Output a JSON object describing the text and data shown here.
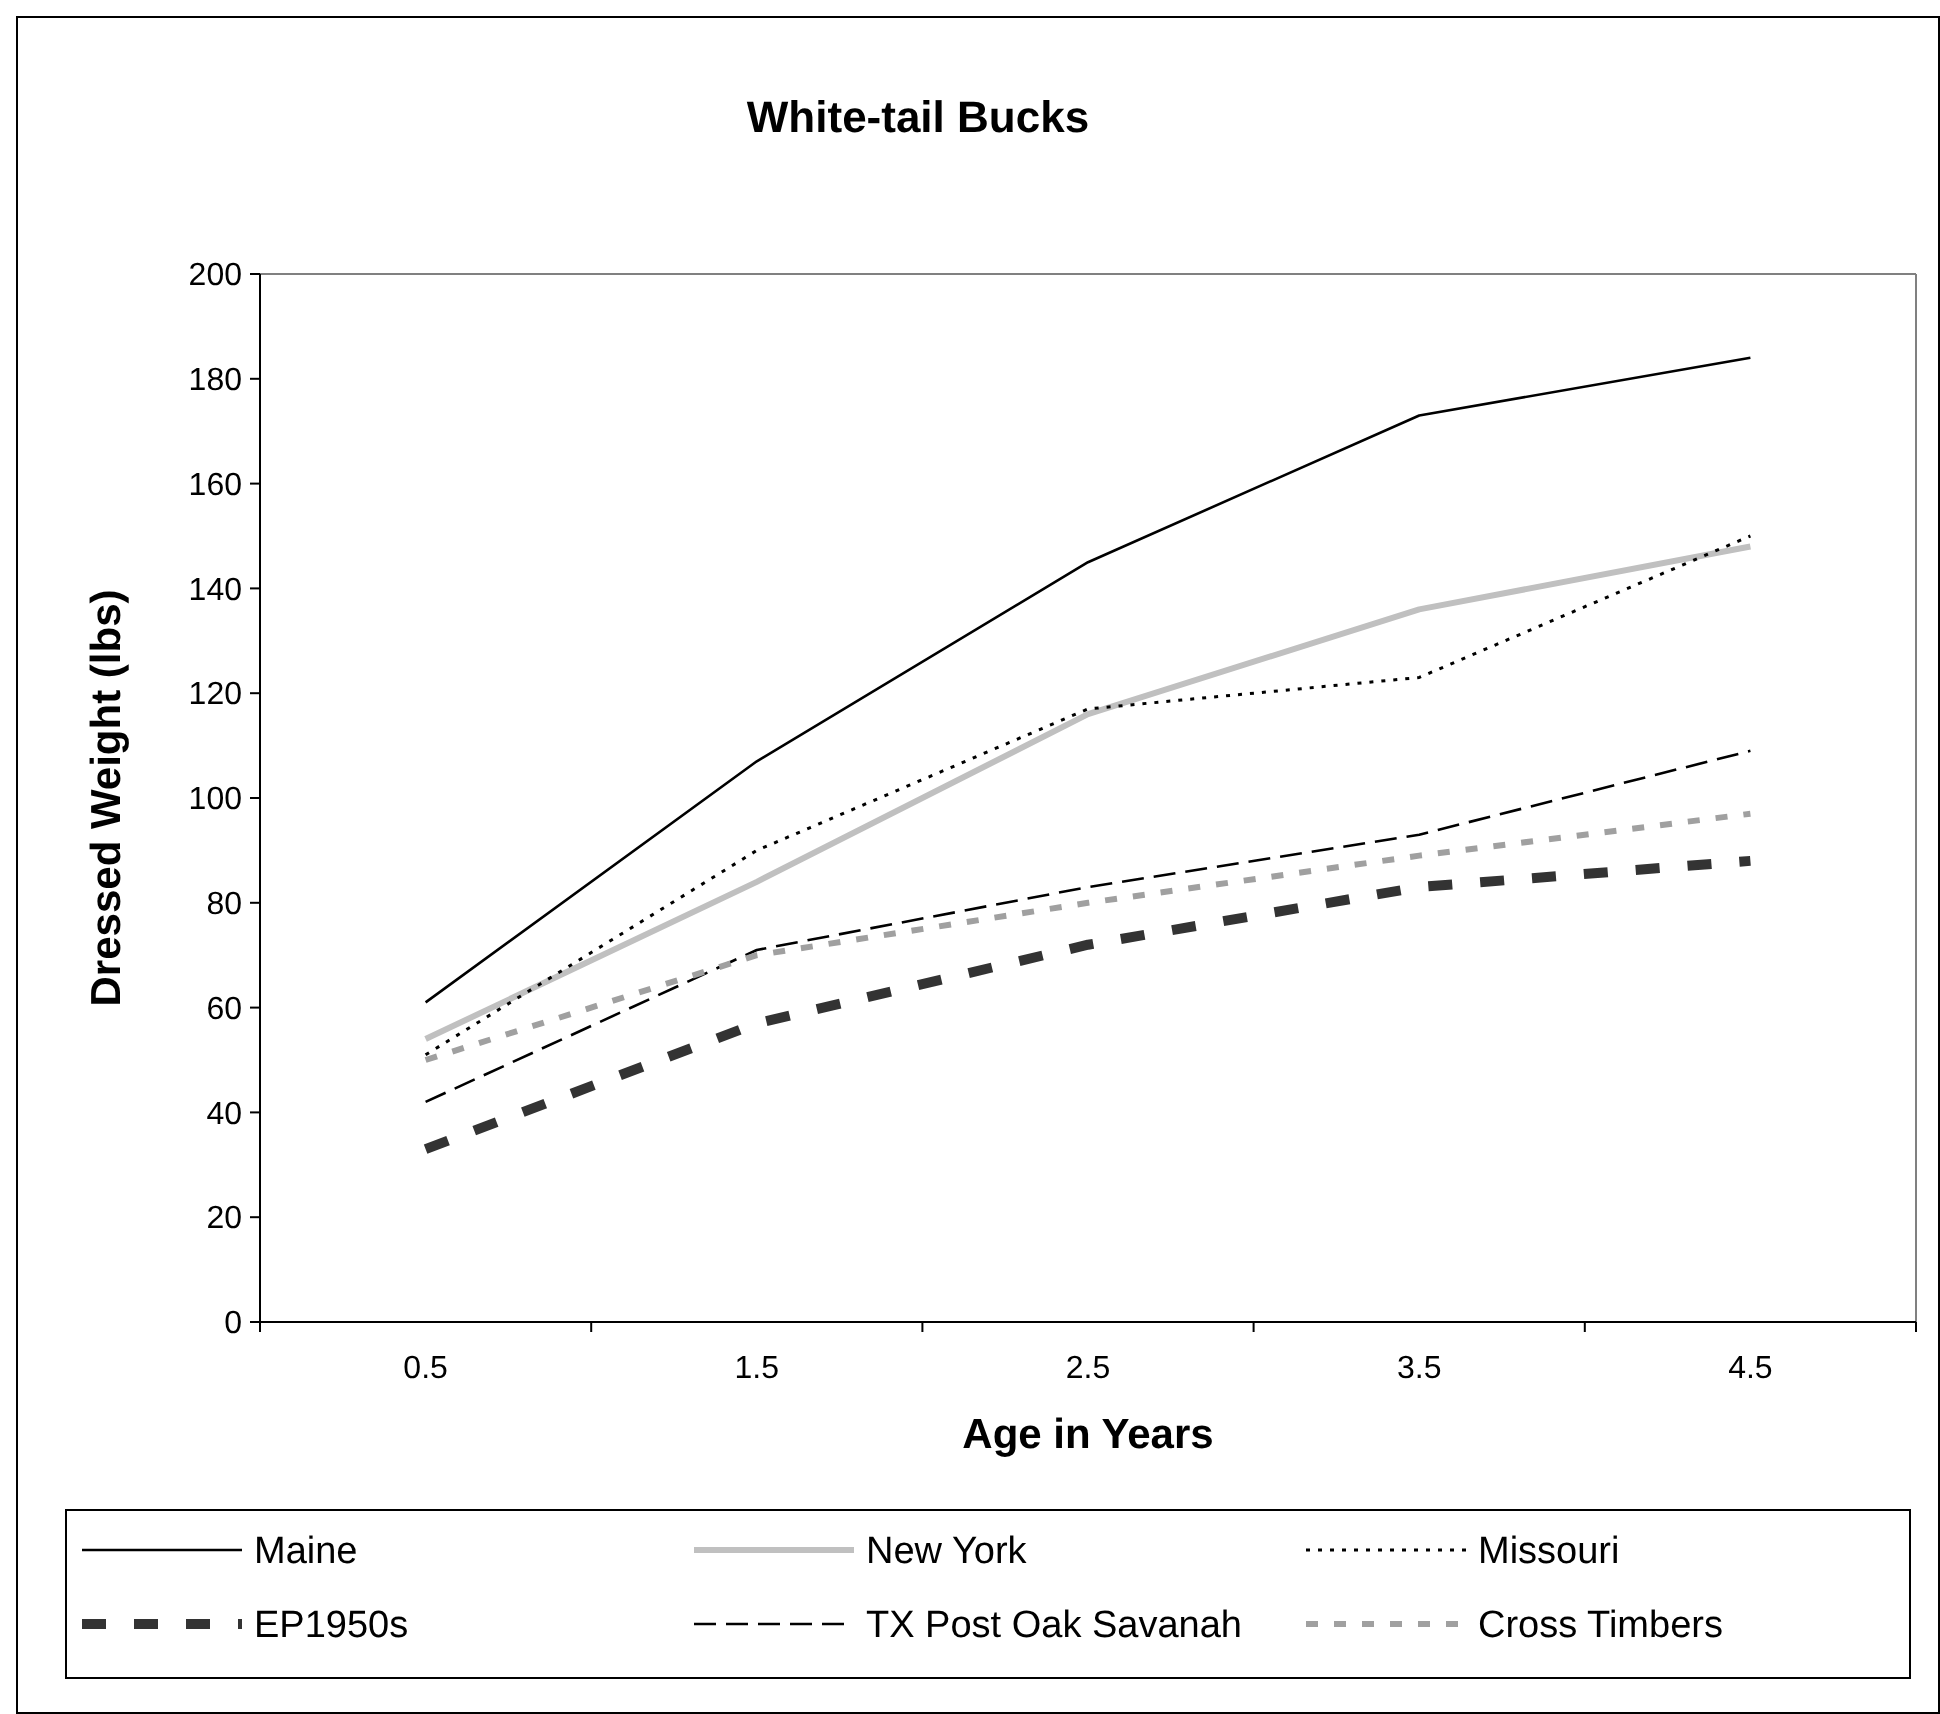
{
  "chart_data": {
    "type": "line",
    "title": "White-tail Bucks",
    "xlabel": "Age in Years",
    "ylabel": "Dressed Weight (lbs)",
    "categories": [
      "0.5",
      "1.5",
      "2.5",
      "3.5",
      "4.5"
    ],
    "ylim": [
      0,
      200
    ],
    "yticks": [
      0,
      20,
      40,
      60,
      80,
      100,
      120,
      140,
      160,
      180,
      200
    ],
    "grid": false,
    "legend": "bottom",
    "series": [
      {
        "name": "Maine",
        "color": "#000000",
        "line_style": "solid",
        "values": [
          61,
          107,
          145,
          173,
          184
        ]
      },
      {
        "name": "New York",
        "color": "#c0c0c0",
        "line_style": "solid",
        "values": [
          54,
          84,
          116,
          136,
          148
        ]
      },
      {
        "name": "Missouri",
        "color": "#000000",
        "line_style": "dotted",
        "values": [
          51,
          90,
          117,
          123,
          150
        ]
      },
      {
        "name": "EP1950s",
        "color": "#333333",
        "line_style": "dashed",
        "values": [
          33,
          57,
          72,
          83,
          88
        ]
      },
      {
        "name": "TX Post Oak Savanah",
        "color": "#000000",
        "line_style": "dashed",
        "values": [
          42,
          71,
          83,
          93,
          109
        ]
      },
      {
        "name": "Cross Timbers",
        "color": "#a0a0a0",
        "line_style": "dashed",
        "values": [
          50,
          70,
          80,
          89,
          97
        ]
      }
    ]
  }
}
